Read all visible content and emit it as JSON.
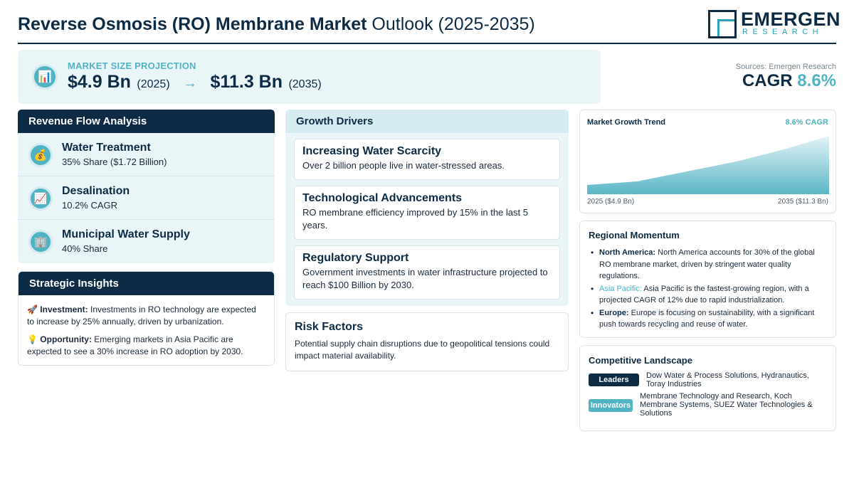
{
  "header": {
    "title_bold": "Reverse Osmosis (RO) Membrane Market",
    "title_rest": "Outlook (2025-2035)",
    "logo_name": "EMERGEN",
    "logo_sub": "RESEARCH"
  },
  "projection": {
    "label": "MARKET SIZE PROJECTION",
    "start_value": "$4.9 Bn",
    "start_year": "(2025)",
    "arrow": "→",
    "end_value": "$11.3 Bn",
    "end_year": "(2035)",
    "icon": "bar-chart-icon"
  },
  "summary": {
    "sources": "Sources: Emergen Research",
    "cagr_label": "CAGR",
    "cagr_value": "8.6%"
  },
  "revenue": {
    "title": "Revenue Flow Analysis",
    "items": [
      {
        "title": "Water Treatment",
        "sub": "35% Share ($1.72 Billion)",
        "icon": "money-bag-icon",
        "glyph": "💰"
      },
      {
        "title": "Desalination",
        "sub": "10.2% CAGR",
        "icon": "trending-up-icon",
        "glyph": "📈"
      },
      {
        "title": "Municipal Water Supply",
        "sub": "40% Share",
        "icon": "office-building-icon",
        "glyph": "🏢"
      }
    ]
  },
  "insights": {
    "title": "Strategic Insights",
    "items": [
      {
        "emoji": "🚀",
        "label": "Investment:",
        "text": "Investments in RO technology are expected to increase by 25% annually, driven by urbanization."
      },
      {
        "emoji": "💡",
        "label": "Opportunity:",
        "text": "Emerging markets in Asia Pacific are expected to see a 30% increase in RO adoption by 2030."
      }
    ]
  },
  "drivers": {
    "title": "Growth Drivers",
    "items": [
      {
        "title": "Increasing Water Scarcity",
        "text": "Over 2 billion people live in water-stressed areas."
      },
      {
        "title": "Technological Advancements",
        "text": "RO membrane efficiency improved by 15% in the last 5 years."
      },
      {
        "title": "Regulatory Support",
        "text": "Government investments in water infrastructure projected to reach $100 Billion by 2030."
      }
    ]
  },
  "risk": {
    "title": "Risk Factors",
    "text": "Potential supply chain disruptions due to geopolitical tensions could impact material availability."
  },
  "trend": {
    "title": "Market Growth Trend",
    "cagr": "8.6% CAGR",
    "start_label": "2025 ($4.9 Bn)",
    "end_label": "2035 ($11.3 Bn)",
    "colors": {
      "fill_top": "#e3f3f6",
      "fill_bottom": "#5ab6c6"
    }
  },
  "regional": {
    "title": "Regional Momentum",
    "items": [
      {
        "name": "North America:",
        "text": "North America accounts for 30% of the global RO membrane market, driven by stringent water quality regulations.",
        "accent": false
      },
      {
        "name": "Asia Pacific:",
        "text": "Asia Pacific is the fastest-growing region, with a projected CAGR of 12% due to rapid industrialization.",
        "accent": true
      },
      {
        "name": "Europe:",
        "text": "Europe is focusing on sustainability, with a significant push towards recycling and reuse of water.",
        "accent": false
      }
    ]
  },
  "competitive": {
    "title": "Competitive Landscape",
    "leaders_label": "Leaders",
    "leaders_text": "Dow Water & Process Solutions, Hydranautics, Toray Industries",
    "innovators_label": "Innovators",
    "innovators_text": "Membrane Technology and Research, Koch Membrane Systems, SUEZ Water Technologies & Solutions"
  },
  "colors": {
    "navy": "#0d2b45",
    "accent": "#4fb3c4",
    "panel": "#eaf5f8"
  }
}
